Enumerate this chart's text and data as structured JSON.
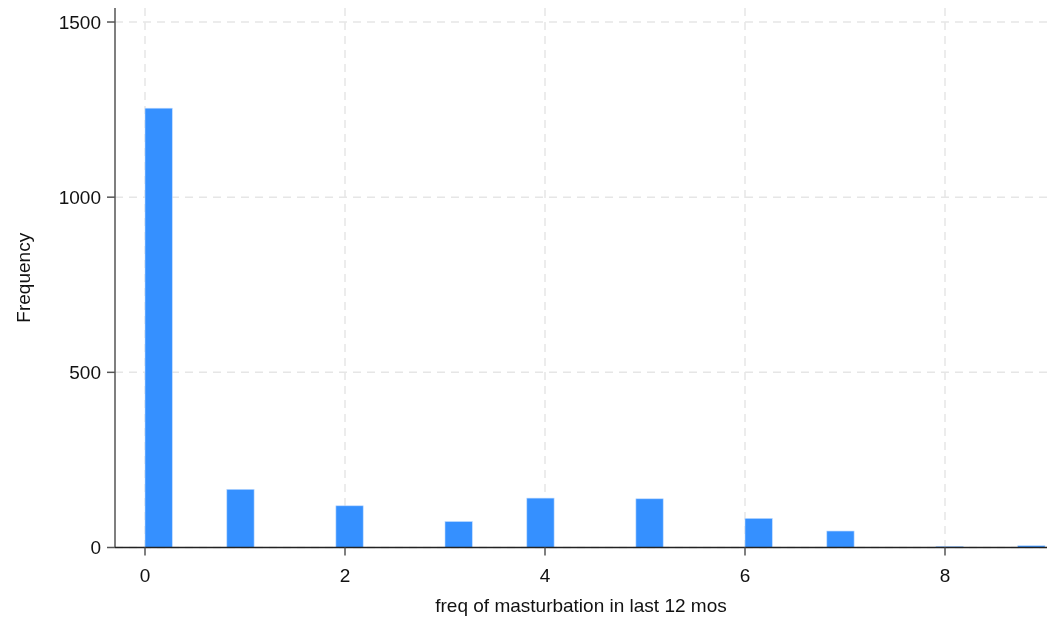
{
  "chart_data": {
    "type": "histogram",
    "xlabel": "freq of masturbation in last 12 mos",
    "ylabel": "Frequency",
    "bins": [
      0,
      0.2727,
      0.5455,
      0.8182,
      1.0909,
      1.3636,
      1.6364,
      1.9091,
      2.1818,
      2.4545,
      2.7273,
      3,
      3.2727,
      3.5455,
      3.8182,
      4.0909,
      4.3636,
      4.6364,
      4.9091,
      5.1818,
      5.4545,
      5.7273,
      6,
      6.2727,
      6.5455,
      6.8182,
      7.0909,
      7.3636,
      7.6364,
      7.9091,
      8.1818,
      8.4545,
      8.7273,
      9
    ],
    "values": [
      1254,
      0,
      0,
      166,
      0,
      0,
      0,
      119,
      0,
      0,
      0,
      74,
      0,
      0,
      141,
      0,
      0,
      0,
      139,
      0,
      0,
      0,
      83,
      0,
      0,
      47,
      0,
      0,
      0,
      3,
      0,
      0,
      5
    ],
    "color": "#3590ff",
    "xlim": [
      -0.3,
      9.02
    ],
    "xticks": [
      0,
      2,
      4,
      6,
      8
    ],
    "ylim": [
      0,
      1540
    ],
    "yticks": [
      0,
      500,
      1000,
      1500
    ],
    "grid": true
  }
}
